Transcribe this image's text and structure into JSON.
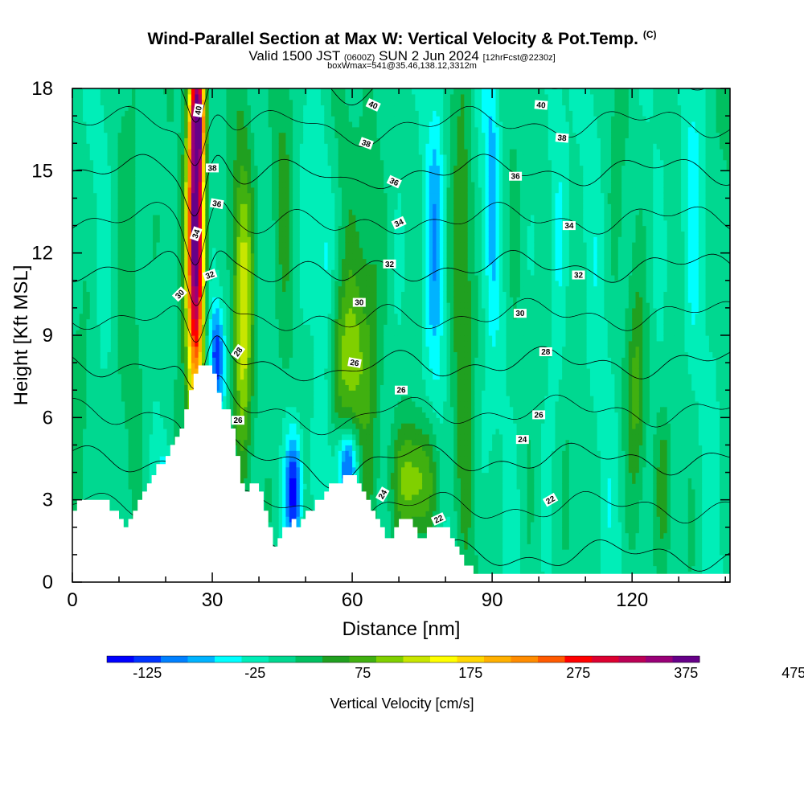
{
  "header": {
    "title": "Wind-Parallel Section at Max W: Vertical Velocity & Pot.Temp.",
    "copyright": "(C)",
    "valid_prefix": "Valid 1500 JST",
    "valid_utc": "(0600Z)",
    "valid_date": "SUN 2 Jun 2024",
    "forecast": "[12hrFcst@2230z]",
    "box_info": "boxWmax=541@35.46,138.12,3312m"
  },
  "chart_data": {
    "type": "heatmap",
    "xlabel": "Distance [nm]",
    "ylabel": "Height [Kft MSL]",
    "xlim": [
      0,
      141
    ],
    "ylim": [
      0,
      18
    ],
    "x_ticks": [
      0,
      30,
      60,
      90,
      120
    ],
    "y_ticks": [
      0,
      3,
      6,
      9,
      12,
      15,
      18
    ],
    "x_tick_labels": [
      "0",
      "30",
      "60",
      "90",
      "120"
    ],
    "y_tick_labels": [
      "0",
      "3",
      "6",
      "9",
      "12",
      "15",
      "18"
    ],
    "colorbar": {
      "label": "Vertical Velocity [cm/s]",
      "tick_labels": [
        "-125",
        "-25",
        "75",
        "175",
        "275",
        "375",
        "475"
      ],
      "tick_values": [
        -125,
        -25,
        75,
        175,
        275,
        375,
        475
      ],
      "levels_min": -150,
      "levels_step": 25,
      "colors": [
        "#0000ff",
        "#0033ff",
        "#0080ff",
        "#00b3ff",
        "#00ffff",
        "#00eeb8",
        "#00d890",
        "#00c060",
        "#20a020",
        "#40b010",
        "#80d000",
        "#c8e600",
        "#ffff00",
        "#ffd700",
        "#ffb000",
        "#ff8c00",
        "#ff5a00",
        "#ff0000",
        "#dd0030",
        "#bb0055",
        "#990077",
        "#660088"
      ]
    },
    "terrain": [
      [
        0,
        2.6
      ],
      [
        1,
        2.6
      ],
      [
        1,
        3.0
      ],
      [
        8,
        3.0
      ],
      [
        8,
        2.6
      ],
      [
        10,
        2.6
      ],
      [
        10,
        2.3
      ],
      [
        11,
        2.3
      ],
      [
        11,
        2.0
      ],
      [
        12,
        2.0
      ],
      [
        12,
        2.3
      ],
      [
        13,
        2.3
      ],
      [
        13,
        2.6
      ],
      [
        14,
        2.6
      ],
      [
        14,
        3.0
      ],
      [
        15,
        3.0
      ],
      [
        15,
        3.3
      ],
      [
        16,
        3.3
      ],
      [
        16,
        3.6
      ],
      [
        17,
        3.6
      ],
      [
        17,
        3.9
      ],
      [
        18,
        3.9
      ],
      [
        18,
        4.3
      ],
      [
        20,
        4.3
      ],
      [
        20,
        4.6
      ],
      [
        21,
        4.6
      ],
      [
        21,
        5.0
      ],
      [
        22,
        5.0
      ],
      [
        22,
        5.3
      ],
      [
        23,
        5.3
      ],
      [
        23,
        5.6
      ],
      [
        24,
        5.6
      ],
      [
        24,
        6.3
      ],
      [
        25,
        6.3
      ],
      [
        25,
        7.0
      ],
      [
        26,
        7.0
      ],
      [
        26,
        7.6
      ],
      [
        27,
        7.6
      ],
      [
        27,
        7.9
      ],
      [
        30,
        7.9
      ],
      [
        30,
        7.6
      ],
      [
        31,
        7.6
      ],
      [
        31,
        6.9
      ],
      [
        32,
        6.9
      ],
      [
        32,
        6.3
      ],
      [
        34,
        6.3
      ],
      [
        34,
        5.6
      ],
      [
        35,
        5.6
      ],
      [
        35,
        4.6
      ],
      [
        36,
        4.6
      ],
      [
        36,
        3.6
      ],
      [
        37,
        3.6
      ],
      [
        37,
        3.3
      ],
      [
        38,
        3.3
      ],
      [
        38,
        3.6
      ],
      [
        40,
        3.6
      ],
      [
        40,
        3.3
      ],
      [
        41,
        3.3
      ],
      [
        41,
        2.6
      ],
      [
        42,
        2.6
      ],
      [
        42,
        2.0
      ],
      [
        43,
        2.0
      ],
      [
        43,
        1.3
      ],
      [
        44,
        1.3
      ],
      [
        44,
        1.6
      ],
      [
        45,
        1.6
      ],
      [
        45,
        2.0
      ],
      [
        47,
        2.0
      ],
      [
        47,
        2.3
      ],
      [
        48,
        2.3
      ],
      [
        48,
        2.0
      ],
      [
        49,
        2.0
      ],
      [
        49,
        2.3
      ],
      [
        50,
        2.3
      ],
      [
        50,
        2.6
      ],
      [
        52,
        2.6
      ],
      [
        52,
        3.0
      ],
      [
        54,
        3.0
      ],
      [
        54,
        3.3
      ],
      [
        55,
        3.3
      ],
      [
        55,
        3.6
      ],
      [
        58,
        3.6
      ],
      [
        58,
        3.9
      ],
      [
        61,
        3.9
      ],
      [
        61,
        3.6
      ],
      [
        62,
        3.6
      ],
      [
        62,
        3.3
      ],
      [
        63,
        3.3
      ],
      [
        63,
        3.0
      ],
      [
        64,
        3.0
      ],
      [
        64,
        2.6
      ],
      [
        65,
        2.6
      ],
      [
        65,
        2.3
      ],
      [
        66,
        2.3
      ],
      [
        66,
        2.0
      ],
      [
        67,
        2.0
      ],
      [
        67,
        1.6
      ],
      [
        69,
        1.6
      ],
      [
        69,
        2.0
      ],
      [
        70,
        2.0
      ],
      [
        70,
        2.3
      ],
      [
        73,
        2.3
      ],
      [
        73,
        2.0
      ],
      [
        74,
        2.0
      ],
      [
        74,
        1.6
      ],
      [
        76,
        1.6
      ],
      [
        76,
        2.0
      ],
      [
        77,
        2.0
      ],
      [
        77,
        2.0
      ],
      [
        81,
        2.0
      ],
      [
        81,
        1.6
      ],
      [
        82,
        1.6
      ],
      [
        82,
        1.3
      ],
      [
        83,
        1.3
      ],
      [
        83,
        1.0
      ],
      [
        84,
        1.0
      ],
      [
        84,
        0.6
      ],
      [
        86,
        0.6
      ],
      [
        86,
        0.3
      ],
      [
        141,
        0.3
      ]
    ],
    "updrafts": [
      {
        "x": 26.5,
        "y": 13.0,
        "sx": 1.3,
        "sy": 4.5,
        "w": 420
      },
      {
        "x": 27.0,
        "y": 17.0,
        "sx": 1.0,
        "sy": 1.2,
        "w": 200
      },
      {
        "x": 36.5,
        "y": 10.0,
        "sx": 1.5,
        "sy": 4.0,
        "w": 130
      },
      {
        "x": 58.5,
        "y": 8.0,
        "sx": 3.5,
        "sy": 2.2,
        "w": 85
      },
      {
        "x": 73.5,
        "y": 3.7,
        "sx": 3.5,
        "sy": 1.6,
        "w": 110
      },
      {
        "x": 84.0,
        "y": 12.5,
        "sx": 1.6,
        "sy": 6.0,
        "w": 55
      },
      {
        "x": 121.0,
        "y": 7.0,
        "sx": 1.4,
        "sy": 2.5,
        "w": 60
      },
      {
        "x": 64.0,
        "y": 12.0,
        "sx": 2.0,
        "sy": 5.5,
        "w": 50
      },
      {
        "x": 12.0,
        "y": 9.0,
        "sx": 2.5,
        "sy": 6.0,
        "w": 30
      },
      {
        "x": 45.0,
        "y": 15.0,
        "sx": 2.0,
        "sy": 4.0,
        "w": 40
      },
      {
        "x": 127.0,
        "y": 3.5,
        "sx": 1.2,
        "sy": 1.8,
        "w": 55
      }
    ],
    "downdrafts": [
      {
        "x": 47.5,
        "y": 3.3,
        "sx": 1.3,
        "sy": 1.6,
        "w": 160
      },
      {
        "x": 59.0,
        "y": 4.3,
        "sx": 1.6,
        "sy": 0.9,
        "w": 125
      },
      {
        "x": 31.0,
        "y": 8.3,
        "sx": 1.1,
        "sy": 1.3,
        "w": 110
      },
      {
        "x": 78.0,
        "y": 13.0,
        "sx": 1.6,
        "sy": 4.0,
        "w": 80
      },
      {
        "x": 90.0,
        "y": 15.0,
        "sx": 1.2,
        "sy": 3.5,
        "w": 60
      },
      {
        "x": 20.0,
        "y": 3.2,
        "sx": 1.0,
        "sy": 1.2,
        "w": 70
      },
      {
        "x": 54.0,
        "y": 10.0,
        "sx": 1.5,
        "sy": 4.0,
        "w": 40
      },
      {
        "x": 104.0,
        "y": 13.0,
        "sx": 1.5,
        "sy": 5.0,
        "w": 40
      },
      {
        "x": 133.0,
        "y": 14.0,
        "sx": 1.5,
        "sy": 4.0,
        "w": 35
      }
    ],
    "theta_contours": {
      "levels_start": 22,
      "levels_step": 2,
      "levels_end": 40,
      "labels": [
        {
          "text": "40",
          "x": 27.0,
          "y": 17.2,
          "rot": -80
        },
        {
          "text": "40",
          "x": 64.5,
          "y": 17.4,
          "rot": 25
        },
        {
          "text": "40",
          "x": 100.5,
          "y": 17.4,
          "rot": 5
        },
        {
          "text": "38",
          "x": 30.0,
          "y": 15.1,
          "rot": 0
        },
        {
          "text": "38",
          "x": 63.0,
          "y": 16.0,
          "rot": 20
        },
        {
          "text": "38",
          "x": 105.0,
          "y": 16.2,
          "rot": 5
        },
        {
          "text": "36",
          "x": 31.0,
          "y": 13.8,
          "rot": 10
        },
        {
          "text": "36",
          "x": 69.0,
          "y": 14.6,
          "rot": 25
        },
        {
          "text": "36",
          "x": 95.0,
          "y": 14.8,
          "rot": 0
        },
        {
          "text": "34",
          "x": 26.5,
          "y": 12.7,
          "rot": -70
        },
        {
          "text": "34",
          "x": 70.0,
          "y": 13.1,
          "rot": -25
        },
        {
          "text": "34",
          "x": 106.5,
          "y": 13.0,
          "rot": 0
        },
        {
          "text": "32",
          "x": 29.5,
          "y": 11.2,
          "rot": -20
        },
        {
          "text": "32",
          "x": 68.0,
          "y": 11.6,
          "rot": 0
        },
        {
          "text": "32",
          "x": 108.5,
          "y": 11.2,
          "rot": 0
        },
        {
          "text": "30",
          "x": 23.0,
          "y": 10.5,
          "rot": -45
        },
        {
          "text": "30",
          "x": 61.5,
          "y": 10.2,
          "rot": 0
        },
        {
          "text": "30",
          "x": 96.0,
          "y": 9.8,
          "rot": 0
        },
        {
          "text": "28",
          "x": 35.5,
          "y": 8.4,
          "rot": -55
        },
        {
          "text": "28",
          "x": 101.5,
          "y": 8.4,
          "rot": 0
        },
        {
          "text": "26",
          "x": 60.5,
          "y": 8.0,
          "rot": 10
        },
        {
          "text": "26",
          "x": 70.5,
          "y": 7.0,
          "rot": 0
        },
        {
          "text": "26",
          "x": 35.5,
          "y": 5.9,
          "rot": 0
        },
        {
          "text": "26",
          "x": 100.0,
          "y": 6.1,
          "rot": 0
        },
        {
          "text": "24",
          "x": 96.5,
          "y": 5.2,
          "rot": 0
        },
        {
          "text": "24",
          "x": 66.5,
          "y": 3.2,
          "rot": -60
        },
        {
          "text": "22",
          "x": 78.5,
          "y": 2.3,
          "rot": -25
        },
        {
          "text": "22",
          "x": 102.5,
          "y": 3.0,
          "rot": -30
        }
      ]
    }
  }
}
